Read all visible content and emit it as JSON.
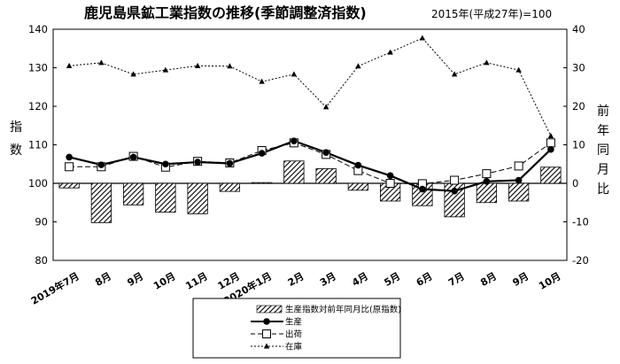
{
  "chart_data": {
    "type": "bar",
    "title": "鹿児島県鉱工業指数の推移(季節調整済指数)",
    "subtitle": "2015年(平成27年)=100",
    "ylabel_left": [
      "指",
      "数"
    ],
    "ylabel_right": [
      "前",
      "年",
      "同",
      "月",
      "比"
    ],
    "ylim_left": [
      80,
      140
    ],
    "yticks_left": [
      "80",
      "90",
      "100",
      "110",
      "120",
      "130",
      "140"
    ],
    "ylim_right": [
      -20,
      40
    ],
    "yticks_right": [
      "-20",
      "-10",
      "0",
      "10",
      "20",
      "30",
      "40"
    ],
    "categories": [
      "2019年7月",
      "8月",
      "9月",
      "10月",
      "11月",
      "12月",
      "2020年1月",
      "2月",
      "3月",
      "4月",
      "5月",
      "6月",
      "7月",
      "8月",
      "9月",
      "10月"
    ],
    "series": [
      {
        "name": "生産指数対前年同月比(原指数)",
        "type": "bar",
        "axis": "right",
        "values": [
          -1.2,
          -10.2,
          -5.6,
          -7.5,
          -7.9,
          -2.1,
          0.2,
          5.8,
          3.8,
          -1.8,
          -4.6,
          -5.8,
          -8.7,
          -5.0,
          -4.6,
          4.2
        ]
      },
      {
        "name": "生産",
        "type": "line",
        "axis": "left",
        "marker": "filled-circle",
        "values": [
          106.8,
          104.8,
          106.8,
          105.0,
          105.5,
          105.2,
          107.8,
          111.0,
          108.0,
          104.7,
          102.0,
          98.5,
          98.0,
          100.5,
          100.8,
          108.8
        ]
      },
      {
        "name": "出荷",
        "type": "line",
        "axis": "left",
        "marker": "open-square",
        "values": [
          104.3,
          104.3,
          107.0,
          104.2,
          105.7,
          105.3,
          108.5,
          110.5,
          107.5,
          103.3,
          100.0,
          99.9,
          100.8,
          102.5,
          104.5,
          110.5
        ]
      },
      {
        "name": "在庫",
        "type": "line",
        "axis": "right",
        "marker": "filled-triangle",
        "values": [
          30.5,
          31.3,
          28.3,
          29.4,
          30.5,
          30.4,
          26.4,
          28.3,
          19.8,
          30.4,
          34.0,
          37.7,
          28.3,
          31.3,
          29.4,
          12.3
        ]
      }
    ],
    "legend_position": "bottom-center",
    "grid": false
  }
}
